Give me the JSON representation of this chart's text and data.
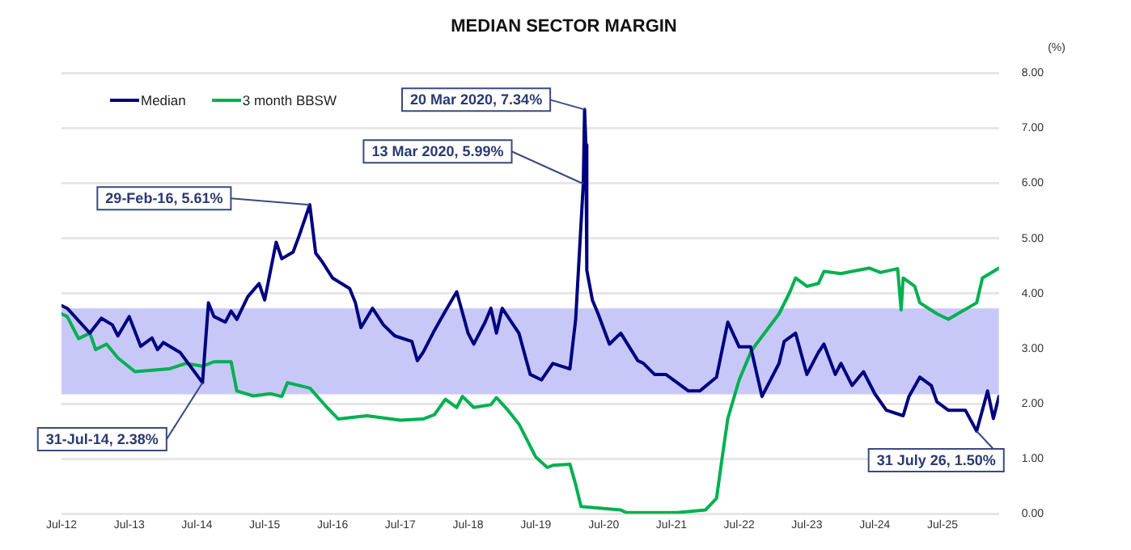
{
  "chart_data": {
    "type": "line",
    "title": "MEDIAN SECTOR MARGIN",
    "ylabel": "(%)",
    "xlim": [
      "2012-07",
      "2026-05"
    ],
    "xticks": [
      {
        "value": "2012-07",
        "label": "Jul-12"
      },
      {
        "value": "2013-07",
        "label": "Jul-13"
      },
      {
        "value": "2014-07",
        "label": "Jul-14"
      },
      {
        "value": "2015-07",
        "label": "Jul-15"
      },
      {
        "value": "2016-07",
        "label": "Jul-16"
      },
      {
        "value": "2017-07",
        "label": "Jul-17"
      },
      {
        "value": "2018-07",
        "label": "Jul-18"
      },
      {
        "value": "2019-07",
        "label": "Jul-19"
      },
      {
        "value": "2020-07",
        "label": "Jul-20"
      },
      {
        "value": "2021-07",
        "label": "Jul-21"
      },
      {
        "value": "2022-07",
        "label": "Jul-22"
      },
      {
        "value": "2023-07",
        "label": "Jul-23"
      },
      {
        "value": "2024-07",
        "label": "Jul-24"
      },
      {
        "value": "2025-07",
        "label": "Jul-25"
      }
    ],
    "ylim": [
      0,
      8
    ],
    "yticks": [
      {
        "value": 0,
        "label": "0.00"
      },
      {
        "value": 1,
        "label": "1.00"
      },
      {
        "value": 2,
        "label": "2.00"
      },
      {
        "value": 3,
        "label": "3.00"
      },
      {
        "value": 4,
        "label": "4.00"
      },
      {
        "value": 5,
        "label": "5.00"
      },
      {
        "value": 6,
        "label": "6.00"
      },
      {
        "value": 7,
        "label": "7.00"
      },
      {
        "value": 8,
        "label": "8.00"
      }
    ],
    "grid": "y",
    "legend": "top left",
    "marker": "none",
    "line_style": "solid",
    "bands": [
      {
        "axis": "y",
        "from": 2.17,
        "to": 3.73,
        "color": "#c8c8f8"
      }
    ],
    "series": [
      {
        "name": "Median",
        "color": "#000080",
        "x": [
          "2012-07",
          "2012-08",
          "2012-12",
          "2013-02",
          "2013-04",
          "2013-05",
          "2013-07",
          "2013-09",
          "2013-11",
          "2013-12",
          "2014-01",
          "2014-04",
          "2014-07-31",
          "2014-09",
          "2014-10",
          "2014-12",
          "2015-01",
          "2015-02",
          "2015-04",
          "2015-06",
          "2015-07",
          "2015-09",
          "2015-10",
          "2015-12",
          "2016-01",
          "2016-02-29",
          "2016-04",
          "2016-05",
          "2016-07",
          "2016-10",
          "2016-11",
          "2016-12",
          "2017-02",
          "2017-04",
          "2017-06",
          "2017-09",
          "2017-10",
          "2017-11",
          "2018-01",
          "2018-03",
          "2018-05",
          "2018-07",
          "2018-08",
          "2018-10",
          "2018-11",
          "2018-12",
          "2019-01",
          "2019-04",
          "2019-06",
          "2019-08",
          "2019-10",
          "2020-01",
          "2020-02",
          "2020-03-13",
          "2020-03-20",
          "2020-03-27",
          "2020-04",
          "2020-05",
          "2020-06",
          "2020-08",
          "2020-10",
          "2021-01",
          "2021-02",
          "2021-04",
          "2021-06",
          "2021-10",
          "2021-12",
          "2022-03",
          "2022-05",
          "2022-07",
          "2022-09",
          "2022-11",
          "2023-02",
          "2023-03",
          "2023-05",
          "2023-07",
          "2023-09",
          "2023-10",
          "2023-12",
          "2024-01",
          "2024-03",
          "2024-05",
          "2024-07",
          "2024-09",
          "2024-12",
          "2025-01",
          "2025-03",
          "2025-05",
          "2025-06",
          "2025-08",
          "2025-11",
          "2026-01",
          "2026-03",
          "2026-04",
          "2026-05"
        ],
        "values": [
          3.78,
          3.73,
          3.28,
          3.55,
          3.43,
          3.23,
          3.58,
          3.04,
          3.19,
          2.98,
          3.11,
          2.93,
          2.38,
          3.83,
          3.58,
          3.48,
          3.68,
          3.53,
          3.94,
          4.18,
          3.88,
          4.93,
          4.63,
          4.75,
          5.03,
          5.61,
          4.73,
          4.6,
          4.28,
          4.09,
          3.83,
          3.38,
          3.73,
          3.43,
          3.23,
          3.13,
          2.78,
          2.93,
          3.33,
          3.68,
          4.03,
          3.28,
          3.08,
          3.48,
          3.73,
          3.28,
          3.73,
          3.28,
          2.53,
          2.43,
          2.73,
          2.63,
          3.53,
          5.99,
          7.34,
          6.7,
          4.42,
          3.88,
          3.63,
          3.08,
          3.28,
          2.78,
          2.73,
          2.53,
          2.53,
          2.23,
          2.23,
          2.48,
          3.48,
          3.03,
          3.03,
          2.13,
          2.73,
          3.13,
          3.28,
          2.53,
          2.93,
          3.08,
          2.53,
          2.73,
          2.33,
          2.58,
          2.18,
          1.88,
          1.78,
          2.13,
          2.48,
          2.33,
          2.03,
          1.88,
          1.88,
          1.5,
          2.23,
          1.73,
          2.13
        ]
      },
      {
        "name": "3 month BBSW",
        "color": "#00b050",
        "x": [
          "2012-07",
          "2012-08",
          "2012-10",
          "2012-12",
          "2013-01",
          "2013-03",
          "2013-05",
          "2013-08",
          "2014-02",
          "2014-05",
          "2014-08",
          "2014-10",
          "2015-01",
          "2015-02",
          "2015-05",
          "2015-08",
          "2015-10",
          "2015-11",
          "2016-03",
          "2016-06",
          "2016-08",
          "2017-01",
          "2017-07",
          "2017-11",
          "2018-01",
          "2018-03",
          "2018-05",
          "2018-06",
          "2018-08",
          "2018-11",
          "2018-12",
          "2019-02",
          "2019-04",
          "2019-07",
          "2019-09",
          "2019-10",
          "2020-01",
          "2020-02",
          "2020-03",
          "2020-10",
          "2020-11",
          "2021-08",
          "2022-01",
          "2022-03",
          "2022-04",
          "2022-05",
          "2022-07",
          "2022-09",
          "2022-10",
          "2023-02",
          "2023-04",
          "2023-05",
          "2023-07",
          "2023-09",
          "2023-10",
          "2024-01",
          "2024-03",
          "2024-06",
          "2024-08",
          "2024-11",
          "2024-11-20",
          "2024-12",
          "2025-02",
          "2025-03",
          "2025-06",
          "2025-08",
          "2026-01",
          "2026-02",
          "2026-05"
        ],
        "values": [
          3.63,
          3.58,
          3.18,
          3.28,
          2.98,
          3.08,
          2.83,
          2.58,
          2.63,
          2.73,
          2.68,
          2.76,
          2.76,
          2.23,
          2.14,
          2.18,
          2.13,
          2.38,
          2.28,
          1.93,
          1.72,
          1.78,
          1.7,
          1.72,
          1.8,
          2.08,
          1.93,
          2.13,
          1.93,
          1.98,
          2.11,
          1.88,
          1.63,
          1.03,
          0.84,
          0.88,
          0.9,
          0.53,
          0.13,
          0.07,
          0.02,
          0.02,
          0.07,
          0.28,
          1.03,
          1.73,
          2.43,
          2.93,
          3.08,
          3.63,
          4.03,
          4.28,
          4.13,
          4.18,
          4.4,
          4.36,
          4.4,
          4.46,
          4.38,
          4.45,
          3.7,
          4.28,
          4.13,
          3.83,
          3.63,
          3.53,
          3.83,
          4.28,
          4.46
        ]
      }
    ],
    "annotations": [
      {
        "text": "29-Feb-16, 5.61%",
        "x": "2016-02-29",
        "y": 5.61
      },
      {
        "text": "20 Mar 2020, 7.34%",
        "x": "2020-03-20",
        "y": 7.34
      },
      {
        "text": "13 Mar 2020, 5.99%",
        "x": "2020-03-13",
        "y": 5.99
      },
      {
        "text": "31-Jul-14, 2.38%",
        "x": "2014-07-31",
        "y": 2.38
      },
      {
        "text": "31 July 26, 1.50%",
        "x": "2026-01",
        "y": 1.5
      }
    ]
  }
}
